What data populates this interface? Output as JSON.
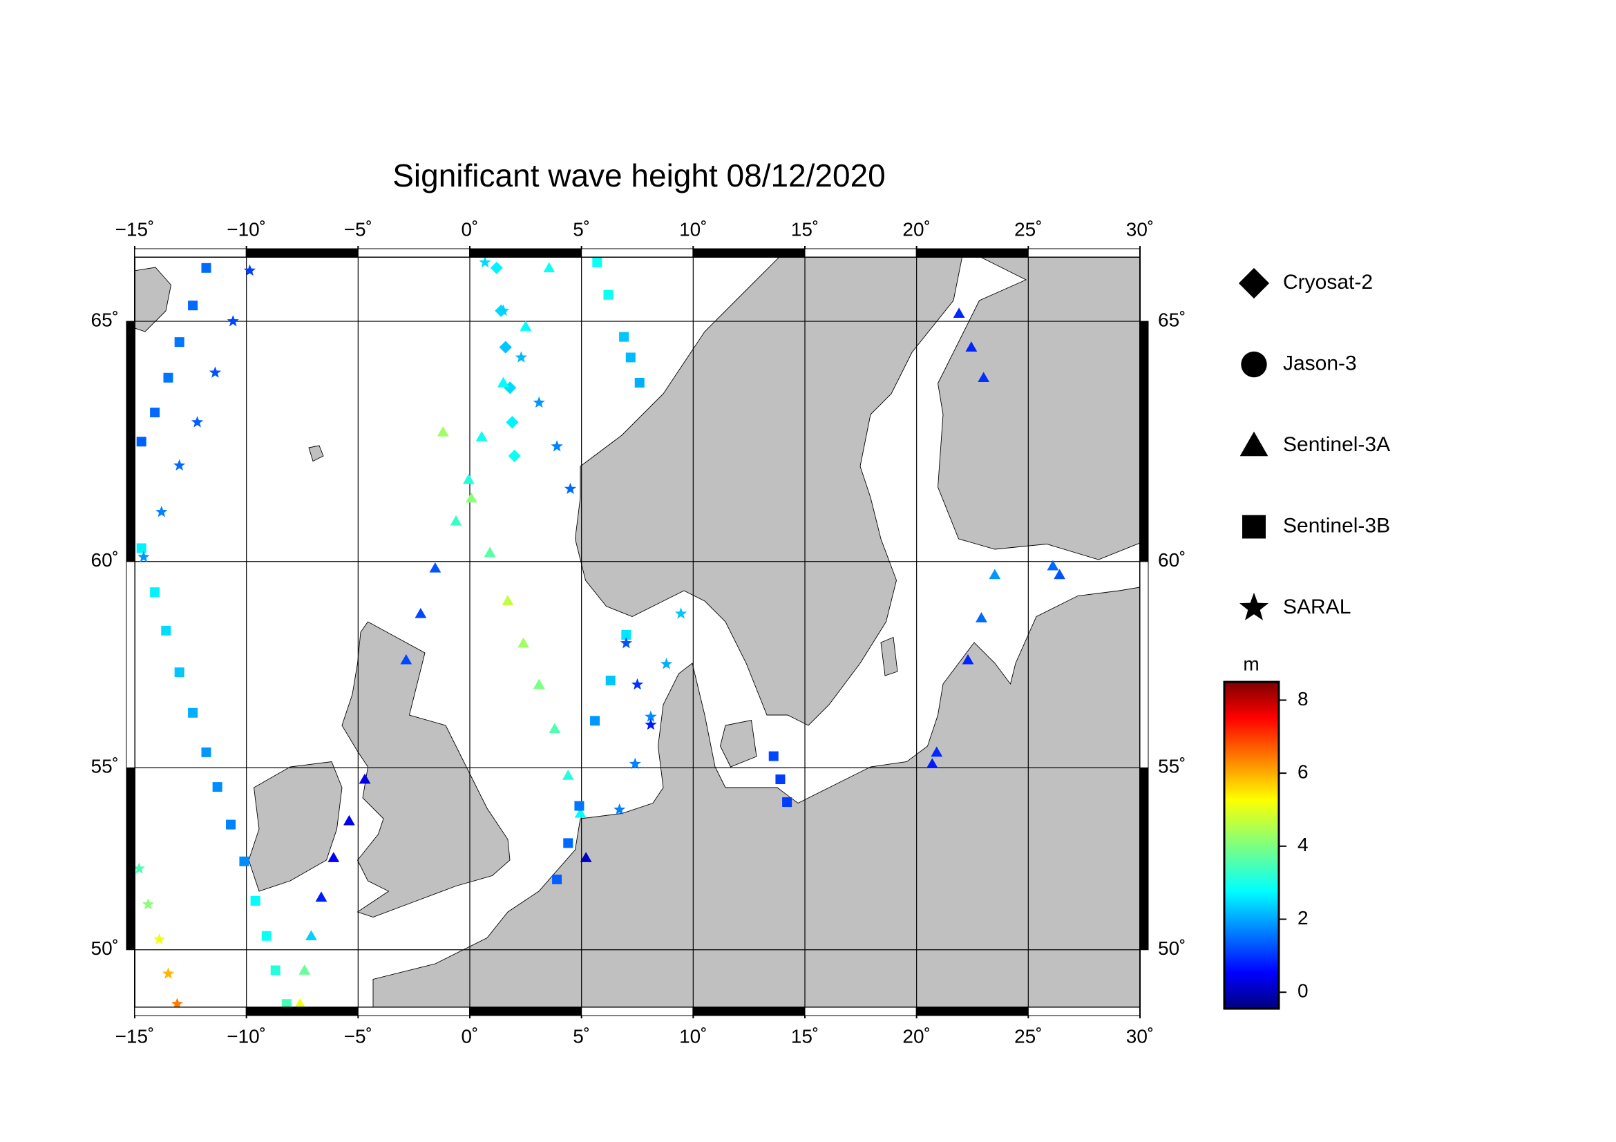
{
  "chart_data": {
    "type": "scatter",
    "title": "Significant wave height 08/12/2020",
    "projection": "mercator",
    "xlim": [
      -15,
      30
    ],
    "ylim": [
      48.3,
      66.2
    ],
    "grid": true,
    "xticks": [
      {
        "value": -15,
        "label": "−15˚"
      },
      {
        "value": -10,
        "label": "−10˚"
      },
      {
        "value": -5,
        "label": "−5˚"
      },
      {
        "value": 0,
        "label": "0˚"
      },
      {
        "value": 5,
        "label": "5˚"
      },
      {
        "value": 10,
        "label": "10˚"
      },
      {
        "value": 15,
        "label": "15˚"
      },
      {
        "value": 20,
        "label": "20˚"
      },
      {
        "value": 25,
        "label": "25˚"
      },
      {
        "value": 30,
        "label": "30˚"
      }
    ],
    "yticks": [
      {
        "value": 50,
        "label": "50˚"
      },
      {
        "value": 55,
        "label": "55˚"
      },
      {
        "value": 60,
        "label": "60˚"
      },
      {
        "value": 65,
        "label": "65˚"
      }
    ],
    "colorbar": {
      "label": "m",
      "colormap": "jet",
      "lim": [
        -0.45,
        8.5
      ],
      "ticks": [
        0,
        2,
        4,
        6,
        8
      ]
    },
    "series": [
      {
        "name": "Cryosat-2",
        "marker": "diamond",
        "color": "#000000",
        "x": [
          1.2,
          1.4,
          1.6,
          1.8,
          1.9,
          2.0
        ],
        "y": [
          66.0,
          65.2,
          64.5,
          63.7,
          63.0,
          62.3
        ],
        "values": [
          2.8,
          2.6,
          2.4,
          2.6,
          2.8,
          3.0
        ]
      },
      {
        "name": "Jason-3",
        "marker": "circle",
        "color": "#000000",
        "x": [],
        "y": [],
        "values": []
      },
      {
        "name": "Sentinel-3A",
        "marker": "triangle",
        "color": "#000000",
        "x": [
          3.55,
          2.5,
          1.5,
          0.53,
          -0.05,
          -0.62,
          -1.2,
          0.07,
          0.9,
          1.7,
          2.4,
          3.1,
          3.8,
          4.4,
          4.95,
          -1.55,
          -2.2,
          -2.85,
          -4.7,
          -5.4,
          -6.1,
          -6.65,
          -7.1,
          -7.4,
          -7.6,
          21.9,
          22.45,
          23.0,
          23.5,
          22.9,
          22.3,
          26.1,
          26.4,
          20.7,
          20.9,
          5.2
        ],
        "y": [
          66.0,
          64.9,
          63.8,
          62.7,
          61.8,
          60.9,
          62.8,
          61.4,
          60.2,
          59.1,
          58.1,
          57.1,
          56.0,
          54.8,
          53.8,
          59.85,
          58.8,
          57.7,
          54.7,
          53.6,
          52.6,
          51.5,
          50.4,
          49.4,
          48.4,
          65.15,
          64.5,
          63.9,
          59.7,
          58.7,
          57.7,
          59.9,
          59.7,
          55.1,
          55.4,
          52.6
        ],
        "values": [
          3.0,
          2.9,
          2.9,
          3.0,
          3.2,
          3.4,
          4.3,
          4.1,
          3.7,
          4.6,
          4.3,
          4.0,
          3.6,
          3.2,
          2.9,
          1.4,
          1.3,
          1.3,
          0.4,
          0.5,
          0.6,
          0.9,
          2.5,
          3.8,
          5.0,
          1.0,
          1.0,
          1.1,
          2.0,
          1.6,
          1.0,
          1.6,
          1.4,
          0.9,
          1.0,
          0.1
        ]
      },
      {
        "name": "Sentinel-3B",
        "marker": "square",
        "color": "#000000",
        "x": [
          -11.8,
          -12.4,
          -13.0,
          -13.5,
          -14.1,
          -14.7,
          -14.7,
          -14.1,
          -13.6,
          -13.0,
          -12.4,
          -11.8,
          -11.3,
          -10.7,
          -10.1,
          -9.6,
          -9.1,
          -8.7,
          -8.2,
          5.7,
          6.2,
          6.9,
          7.2,
          7.6,
          3.9,
          4.4,
          4.9,
          5.6,
          6.3,
          7.0,
          13.6,
          13.9,
          14.2
        ],
        "y": [
          66.0,
          65.3,
          64.6,
          63.9,
          63.2,
          62.6,
          60.3,
          59.3,
          58.4,
          57.4,
          56.4,
          55.4,
          54.5,
          53.5,
          52.5,
          51.4,
          50.4,
          49.4,
          48.4,
          66.1,
          65.5,
          64.7,
          64.3,
          63.8,
          52.0,
          53.0,
          54.0,
          56.2,
          57.2,
          58.3,
          55.3,
          54.7,
          54.1
        ],
        "values": [
          1.6,
          1.6,
          1.7,
          1.7,
          1.6,
          1.5,
          2.8,
          2.8,
          2.6,
          2.4,
          2.2,
          2.0,
          1.9,
          1.8,
          1.9,
          2.9,
          3.0,
          3.2,
          3.5,
          3.0,
          3.0,
          2.4,
          2.3,
          2.2,
          1.5,
          1.6,
          1.7,
          2.0,
          2.4,
          2.7,
          1.3,
          1.2,
          1.2
        ]
      },
      {
        "name": "SARAL",
        "marker": "star",
        "color": "#000000",
        "x": [
          -9.85,
          -10.6,
          -11.4,
          -12.2,
          -13.0,
          -13.8,
          -14.6,
          0.68,
          1.5,
          2.3,
          3.1,
          3.9,
          4.5,
          9.45,
          8.8,
          8.1,
          7.4,
          6.7,
          7.0,
          7.5,
          8.1,
          -14.8,
          -14.4,
          -13.9,
          -13.5,
          -13.1
        ],
        "y": [
          65.95,
          65.0,
          64.0,
          63.0,
          62.1,
          61.1,
          60.1,
          66.1,
          65.2,
          64.3,
          63.4,
          62.5,
          61.6,
          58.8,
          57.6,
          56.3,
          55.1,
          53.9,
          58.1,
          57.1,
          56.1,
          52.3,
          51.3,
          50.3,
          49.3,
          48.4
        ],
        "values": [
          1.2,
          1.3,
          1.4,
          1.5,
          1.6,
          1.8,
          2.0,
          2.6,
          2.5,
          2.3,
          2.0,
          1.8,
          1.6,
          2.4,
          2.2,
          1.9,
          1.8,
          1.8,
          1.4,
          1.1,
          0.9,
          3.6,
          4.1,
          5.0,
          5.8,
          6.3
        ]
      }
    ]
  }
}
